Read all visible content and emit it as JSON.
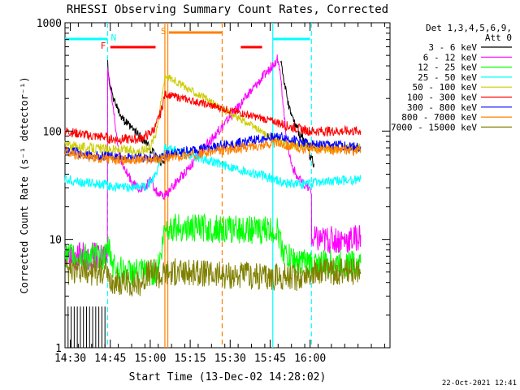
{
  "chart_data": {
    "type": "line",
    "title": "RHESSI Observing Summary Count Rates, Corrected",
    "xlabel": "Start Time (13-Dec-02 14:28:02)",
    "ylabel": "Corrected Count Rate (s⁻¹ detector⁻¹)",
    "yscale": "log",
    "ylim": [
      1,
      1000
    ],
    "xlim_minutes": [
      0,
      122
    ],
    "x_unit": "minutes after 14:28:02",
    "x_ticks": [
      {
        "t": 2,
        "label": "14:30"
      },
      {
        "t": 17,
        "label": "14:45"
      },
      {
        "t": 32,
        "label": "15:00"
      },
      {
        "t": 47,
        "label": "15:15"
      },
      {
        "t": 62,
        "label": "15:30"
      },
      {
        "t": 77,
        "label": "15:45"
      },
      {
        "t": 92,
        "label": "16:00"
      }
    ],
    "y_ticks": [
      {
        "v": 1,
        "label": "1"
      },
      {
        "v": 10,
        "label": "10"
      },
      {
        "v": 100,
        "label": "100"
      },
      {
        "v": 1000,
        "label": "1000"
      }
    ],
    "legend_header": [
      "Det 1,3,4,5,6,9,",
      "Att 0"
    ],
    "legend_position": "right",
    "series": [
      {
        "name": "3 - 6 keV",
        "color": "#000000",
        "x": [
          0,
          15.9,
          16,
          16.5,
          18,
          21,
          24,
          27,
          30,
          32.5,
          34,
          36,
          37.5,
          80,
          81,
          82,
          83,
          84,
          86,
          88,
          90,
          92,
          93.5
        ],
        "y": [
          null,
          null,
          420,
          300,
          200,
          140,
          110,
          95,
          80,
          65,
          58,
          52,
          50,
          null,
          450,
          320,
          230,
          170,
          120,
          95,
          80,
          60,
          50
        ]
      },
      {
        "name": "6 - 12 keV",
        "color": "#ff00ff",
        "x": [
          0,
          5,
          10,
          15.9,
          16,
          17,
          18.5,
          20,
          22,
          24,
          26,
          28,
          30,
          32,
          34,
          36,
          37.5,
          80,
          81,
          82,
          83,
          85,
          87,
          89,
          91,
          92.5,
          92.6,
          96,
          100,
          104,
          108,
          111
        ],
        "y": [
          7,
          7,
          7,
          7,
          400,
          250,
          130,
          70,
          45,
          38,
          32,
          30,
          30,
          35,
          28,
          25,
          25,
          470,
          300,
          170,
          90,
          50,
          38,
          33,
          30,
          28,
          10,
          10,
          10,
          10,
          10,
          11
        ]
      },
      {
        "name": "12 - 25 keV",
        "color": "#00ff00",
        "x": [
          0,
          5,
          10,
          15.9,
          16,
          18,
          22,
          26,
          30,
          34,
          36,
          37.5,
          80,
          81,
          83,
          86,
          90,
          93,
          96,
          100,
          104,
          108,
          111
        ],
        "y": [
          7,
          7,
          7,
          7,
          9,
          6,
          5,
          5,
          5,
          5,
          7,
          13,
          12,
          9,
          7,
          6.5,
          6,
          6,
          6,
          6,
          6,
          6,
          6
        ]
      },
      {
        "name": "25 - 50 keV",
        "color": "#00ffff",
        "x": [
          0,
          5,
          10,
          15.9,
          16,
          20,
          25,
          30,
          32,
          34,
          36,
          37.5,
          80,
          83,
          86,
          90,
          93,
          96,
          100,
          104,
          108,
          111
        ],
        "y": [
          36,
          34,
          33,
          32,
          31,
          30,
          30,
          31,
          34,
          40,
          55,
          70,
          35,
          33,
          33,
          32,
          33,
          34,
          34,
          35,
          35,
          36
        ]
      },
      {
        "name": "50 - 100 keV",
        "color": "#cccc00",
        "x": [
          0,
          5,
          10,
          15.9,
          16,
          20,
          24,
          27,
          30,
          32,
          34,
          36,
          37.5,
          80,
          84,
          88,
          92,
          96,
          100,
          104,
          108,
          111
        ],
        "y": [
          75,
          72,
          70,
          68,
          68,
          67,
          66,
          66,
          67,
          72,
          95,
          180,
          330,
          80,
          75,
          73,
          72,
          70,
          70,
          70,
          69,
          69
        ]
      },
      {
        "name": "100 - 300 keV",
        "color": "#ff0000",
        "x": [
          0,
          5,
          10,
          15.9,
          16,
          20,
          24,
          28,
          32,
          34,
          36,
          37.5,
          80,
          84,
          88,
          92,
          96,
          100,
          104,
          108,
          111
        ],
        "y": [
          100,
          95,
          90,
          88,
          85,
          84,
          84,
          85,
          95,
          110,
          150,
          220,
          120,
          110,
          105,
          100,
          100,
          100,
          100,
          100,
          100
        ]
      },
      {
        "name": "300 - 800 keV",
        "color": "#0000ff",
        "x": [
          0,
          5,
          10,
          15.9,
          16,
          20,
          24,
          28,
          32,
          34,
          36,
          37.5,
          80,
          84,
          88,
          92,
          96,
          100,
          104,
          108,
          111
        ],
        "y": [
          68,
          63,
          60,
          58,
          58,
          57,
          57,
          57,
          57,
          58,
          58,
          60,
          90,
          85,
          80,
          77,
          75,
          74,
          73,
          72,
          72
        ]
      },
      {
        "name": "800 - 7000 keV",
        "color": "#ff8000",
        "x": [
          0,
          5,
          10,
          15.9,
          16,
          20,
          24,
          28,
          32,
          34,
          36,
          37.5,
          80,
          84,
          88,
          92,
          96,
          100,
          104,
          108,
          111
        ],
        "y": [
          65,
          60,
          57,
          55,
          55,
          54,
          54,
          54,
          55,
          55,
          55,
          56,
          78,
          73,
          70,
          68,
          68,
          67,
          67,
          66,
          66
        ]
      },
      {
        "name": "7000 - 15000 keV",
        "color": "#808000",
        "x": [
          0,
          5,
          10,
          15.9,
          16,
          20,
          24,
          28,
          32,
          34,
          36,
          37.5,
          80,
          84,
          88,
          92,
          96,
          100,
          104,
          108,
          111
        ],
        "y": [
          5,
          5,
          5,
          5,
          4,
          4,
          4,
          4,
          5,
          5,
          4.5,
          5,
          4.5,
          4.5,
          4.5,
          5,
          5,
          5,
          5,
          5,
          5
        ]
      }
    ],
    "annotations": [
      {
        "label": "N",
        "color": "#00ffff",
        "x_start": 0,
        "x_end": 16
      },
      {
        "label": "F",
        "color": "#ff0000",
        "x_start": 17,
        "x_end": 34
      },
      {
        "label": "S",
        "color": "#ff8000",
        "x_start": 39,
        "x_end": 59
      },
      {
        "label": "",
        "color": "#ff0000",
        "x_start": 66,
        "x_end": 74
      },
      {
        "label": "",
        "color": "#00ffff",
        "x_start": 78,
        "x_end": 92
      }
    ],
    "vertical_markers": [
      {
        "t": 16,
        "color": "#00ffff",
        "style": "dashed"
      },
      {
        "t": 37.5,
        "color": "#ff8000",
        "style": "solid"
      },
      {
        "t": 38.6,
        "color": "#ff8000",
        "style": "solid"
      },
      {
        "t": 59,
        "color": "#ff8000",
        "style": "dashed"
      },
      {
        "t": 78,
        "color": "#00ffff",
        "style": "solid"
      },
      {
        "t": 92.5,
        "color": "#00ffff",
        "style": "dashed"
      }
    ],
    "attenuator_ticks": {
      "color": "#000000",
      "x_start": 0,
      "x_end": 15,
      "count": 14
    }
  },
  "footer": {
    "timestamp": "22-Oct-2021 12:41"
  }
}
